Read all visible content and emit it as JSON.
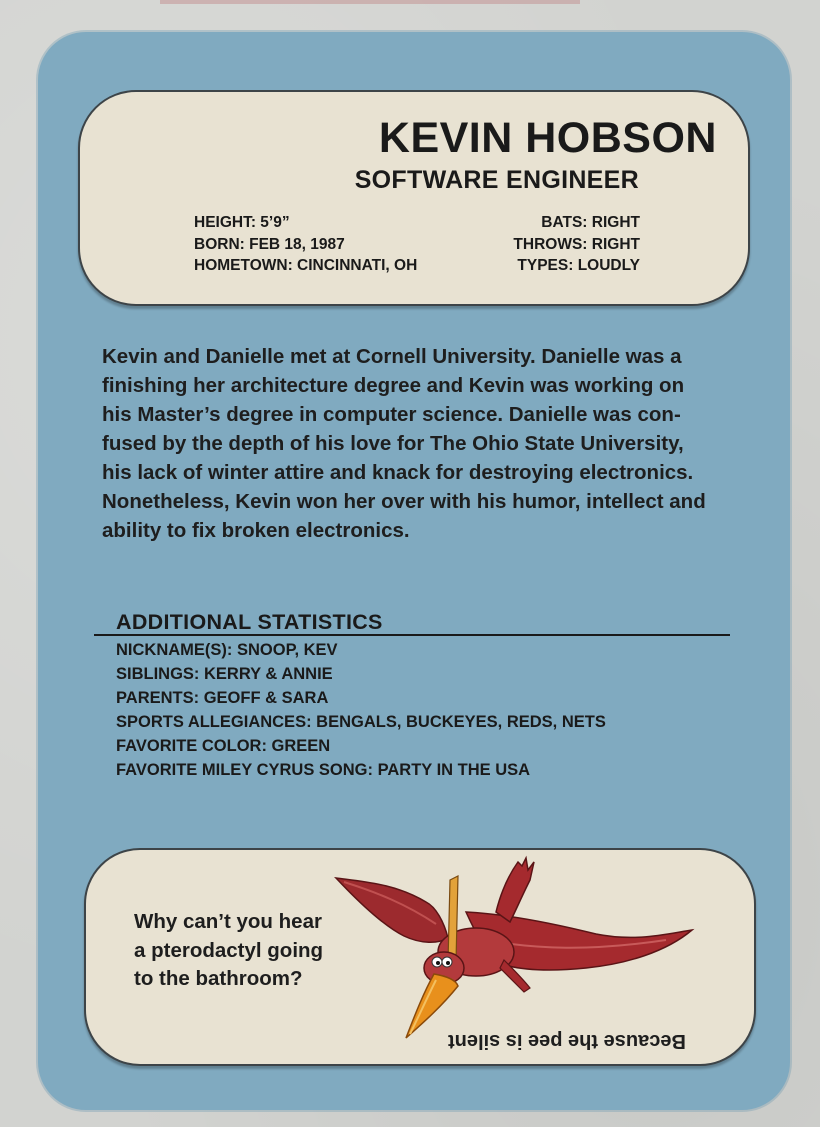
{
  "card": {
    "name": "KEVIN HOBSON",
    "title": "SOFTWARE ENGINEER",
    "stats_left": [
      "HEIGHT: 5’9”",
      "BORN: FEB 18, 1987",
      "HOMETOWN: CINCINNATI, OH"
    ],
    "stats_right": [
      "BATS: RIGHT",
      "THROWS: RIGHT",
      "TYPES: LOUDLY"
    ]
  },
  "bio": {
    "lines": [
      "Kevin and Danielle met at Cornell University. Danielle was a",
      "finishing her architecture degree and Kevin was working on",
      "his Master’s degree in computer science. Danielle was con-",
      "fused by the depth of his love for The Ohio State University,",
      "his lack of winter attire and knack for destroying electronics.",
      "Nonetheless, Kevin won her over with his humor, intellect and",
      "ability to fix broken electronics."
    ]
  },
  "additional": {
    "heading": "ADDITIONAL STATISTICS",
    "items": [
      "NICKNAME(S): SNOOP, KEV",
      "SIBLINGS: KERRY & ANNIE",
      "PARENTS: GEOFF & SARA",
      "SPORTS ALLEGIANCES: BENGALS, BUCKEYES, REDS, NETS",
      "FAVORITE COLOR: GREEN",
      "FAVORITE MILEY CYRUS SONG: PARTY IN THE USA"
    ]
  },
  "joke": {
    "question_lines": [
      "Why can’t you hear",
      "a pterodactyl going",
      "to the bathroom?"
    ],
    "answer": "Because the pee is silent"
  },
  "colors": {
    "card_blue": "#80aac0",
    "panel_cream": "#e8e2d2",
    "ptero_red": "#a0282c",
    "beak_orange": "#e8901c"
  },
  "icons": {
    "illustration": "pterodactyl-illustration"
  }
}
